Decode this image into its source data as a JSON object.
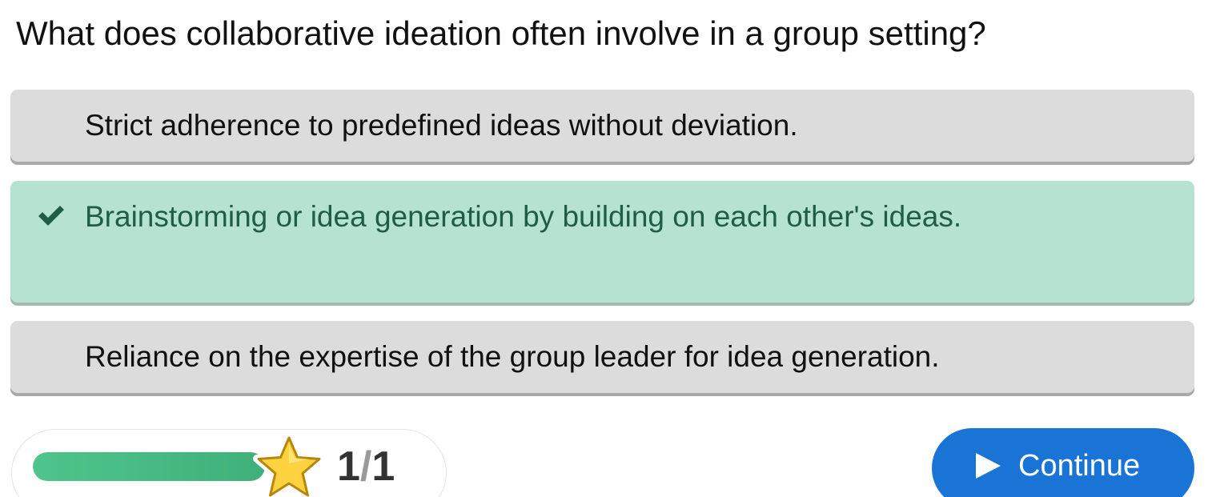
{
  "question": {
    "text": "What does collaborative ideation often involve in a group setting?"
  },
  "options": [
    {
      "text": "Strict adherence to predefined ideas without deviation.",
      "state": "unselected"
    },
    {
      "text": "Brainstorming or idea generation by building on each other's ideas.",
      "state": "correct",
      "icon": "check-icon"
    },
    {
      "text": "Reliance on the expertise of the group leader for idea generation.",
      "state": "unselected"
    }
  ],
  "progress": {
    "fraction_complete": 1.0,
    "current": "1",
    "separator": "/",
    "total": "1",
    "icon": "star-icon"
  },
  "continue_button": {
    "label": "Continue",
    "icon": "play-icon"
  },
  "colors": {
    "correct_background": "#b6e3cf",
    "correct_text": "#215d45",
    "option_background": "#dcdcdc",
    "progress_fill": "#4ec58c",
    "continue_button": "#1a74d6",
    "star": "#ffd23f"
  }
}
